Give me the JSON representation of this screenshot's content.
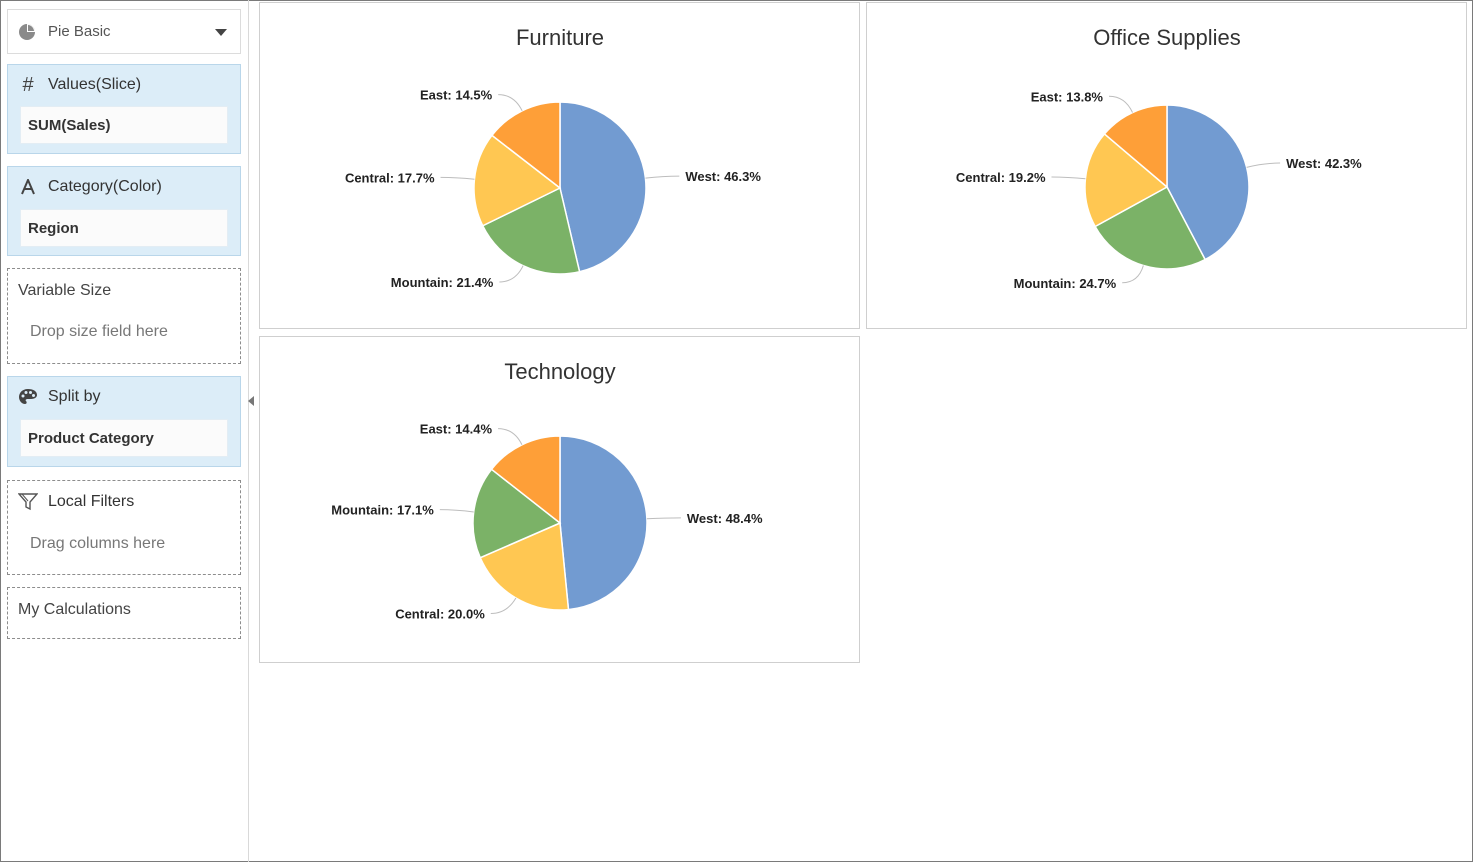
{
  "sidebar": {
    "chart_type": {
      "label": "Pie Basic",
      "icon": "pie-chart-icon"
    },
    "values": {
      "title": "Values(Slice)",
      "icon": "hash-icon",
      "field": "SUM(Sales)"
    },
    "category": {
      "title": "Category(Color)",
      "icon": "text-a-icon",
      "field": "Region"
    },
    "variable_size": {
      "title": "Variable Size",
      "hint": "Drop size field here"
    },
    "split_by": {
      "title": "Split by",
      "icon": "palette-icon",
      "field": "Product Category"
    },
    "local_filters": {
      "title": "Local Filters",
      "icon": "filter-icon",
      "hint": "Drag columns here"
    },
    "my_calculations": {
      "title": "My Calculations"
    }
  },
  "colors": {
    "West": "#729bd1",
    "Mountain": "#7bb267",
    "Central": "#ffc752",
    "East": "#fe9f38"
  },
  "chart_data": [
    {
      "type": "pie",
      "title": "Furniture",
      "slices": [
        {
          "name": "West",
          "value": 46.3,
          "label": "West: 46.3%"
        },
        {
          "name": "Mountain",
          "value": 21.4,
          "label": "Mountain: 21.4%"
        },
        {
          "name": "Central",
          "value": 17.7,
          "label": "Central: 17.7%"
        },
        {
          "name": "East",
          "value": 14.5,
          "label": "East: 14.5%"
        }
      ]
    },
    {
      "type": "pie",
      "title": "Office Supplies",
      "slices": [
        {
          "name": "West",
          "value": 42.3,
          "label": "West: 42.3%"
        },
        {
          "name": "Mountain",
          "value": 24.7,
          "label": "Mountain: 24.7%"
        },
        {
          "name": "Central",
          "value": 19.2,
          "label": "Central: 19.2%"
        },
        {
          "name": "East",
          "value": 13.8,
          "label": "East: 13.8%"
        }
      ]
    },
    {
      "type": "pie",
      "title": "Technology",
      "slices": [
        {
          "name": "West",
          "value": 48.4,
          "label": "West: 48.4%"
        },
        {
          "name": "Central",
          "value": 20.0,
          "label": "Central: 20.0%"
        },
        {
          "name": "Mountain",
          "value": 17.1,
          "label": "Mountain: 17.1%"
        },
        {
          "name": "East",
          "value": 14.4,
          "label": "East: 14.4%"
        }
      ]
    }
  ]
}
